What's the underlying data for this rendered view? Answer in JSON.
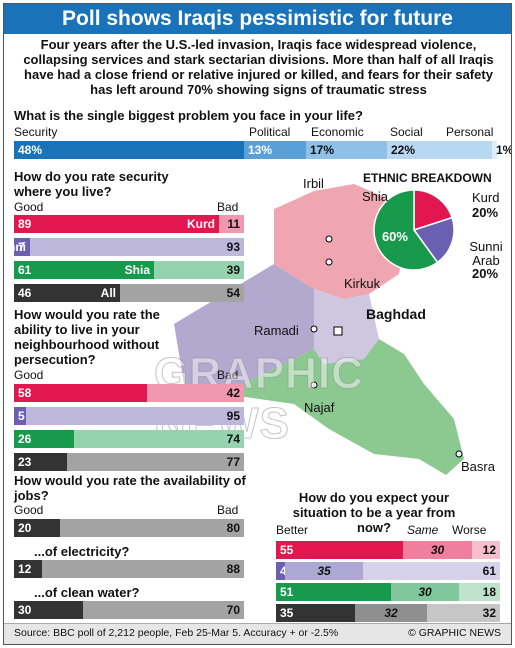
{
  "title": "Poll shows Iraqis pessimistic for future",
  "intro": "Four years after the U.S.-led invasion, Iraqis face widespread violence, collapsing services and stark sectarian divisions. More than half of all Iraqis have had a close friend or relative injured or killed, and fears for their safety has left around 70% showing signs of traumatic stress",
  "colors": {
    "blue": "#1a72b8",
    "kurd": "#e3174f",
    "sunni": "#6a5fb0",
    "shia": "#189a4d",
    "all": "#333333",
    "grey": "#6b6b6b",
    "light_grey": "#cfcfcf"
  },
  "icons": [
    "city-marker-icon",
    "capital-marker-icon",
    "iraq-map"
  ],
  "chart_data": [
    {
      "type": "bar",
      "title": "What is the single biggest problem you face in your life?",
      "categories": [
        "Security",
        "Political",
        "Economic",
        "Social",
        "Personal"
      ],
      "values": [
        48,
        13,
        17,
        22,
        1
      ],
      "value_labels": [
        "48%",
        "13%",
        "17%",
        "22%",
        "1%"
      ]
    },
    {
      "type": "bar",
      "title": "How do you rate security where you live?",
      "good_label": "Good",
      "bad_label": "Bad",
      "categories": [
        "Kurd",
        "Sunni",
        "Shia",
        "All"
      ],
      "series": [
        {
          "name": "Good",
          "values": [
            89,
            7,
            61,
            46
          ]
        },
        {
          "name": "Bad",
          "values": [
            11,
            93,
            39,
            54
          ]
        }
      ]
    },
    {
      "type": "bar",
      "title": "How would you rate the ability to live in your neighbourhood without persecution?",
      "good_label": "Good",
      "bad_label": "Bad",
      "categories": [
        "Kurd",
        "Sunni",
        "Shia",
        "All"
      ],
      "series": [
        {
          "name": "Good",
          "values": [
            58,
            5,
            26,
            23
          ]
        },
        {
          "name": "Bad",
          "values": [
            42,
            95,
            74,
            77
          ]
        }
      ]
    },
    {
      "type": "bar",
      "title": "How would you rate the availability of jobs?",
      "good_label": "Good",
      "bad_label": "Bad",
      "categories": [
        "jobs",
        "...of electricity?",
        "...of clean water?"
      ],
      "series": [
        {
          "name": "Good",
          "values": [
            20,
            12,
            30
          ]
        },
        {
          "name": "Bad",
          "values": [
            80,
            88,
            70
          ]
        }
      ]
    },
    {
      "type": "pie",
      "title": "ETHNIC BREAKDOWN",
      "categories": [
        "Shia",
        "Kurd",
        "Sunni Arab"
      ],
      "values": [
        60,
        20,
        20
      ],
      "value_labels": [
        "60%",
        "20%",
        "20%"
      ]
    },
    {
      "type": "bar",
      "title": "How do you expect your situation to be a year from now?",
      "legend": [
        "Better",
        "Same",
        "Worse"
      ],
      "categories": [
        "Kurd",
        "Sunni",
        "Shia",
        "All"
      ],
      "series": [
        {
          "name": "Better",
          "values": [
            55,
            4,
            51,
            35
          ]
        },
        {
          "name": "Same",
          "values": [
            30,
            35,
            30,
            32
          ]
        },
        {
          "name": "Worse",
          "values": [
            12,
            61,
            18,
            32
          ]
        }
      ]
    }
  ],
  "map": {
    "cities": [
      "Irbil",
      "Kirkuk",
      "Baghdad",
      "Ramadi",
      "Najaf",
      "Basra"
    ]
  },
  "watermark": "GRAPHIC NEWS",
  "footer": {
    "source": "Source: BBC poll of 2,212 people, Feb 25-Mar 5. Accuracy + or -2.5%",
    "credit": "© GRAPHIC NEWS"
  }
}
